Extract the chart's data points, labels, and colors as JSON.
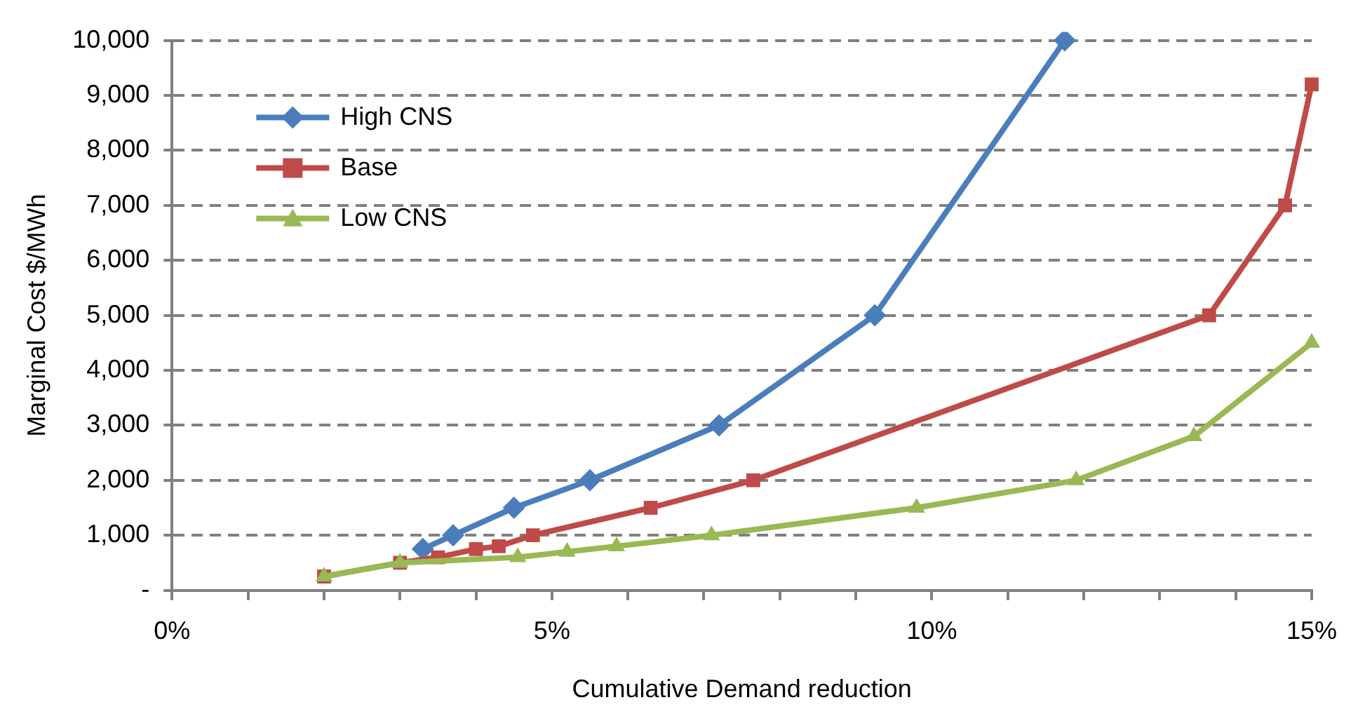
{
  "chart_data": {
    "type": "line",
    "xlabel": "Cumulative Demand reduction",
    "ylabel": "Marginal Cost $/MWh",
    "xlim": [
      0,
      15
    ],
    "xticks": [
      {
        "value": 0,
        "label": "0%"
      },
      {
        "value": 1,
        "label": null
      },
      {
        "value": 2,
        "label": null
      },
      {
        "value": 3,
        "label": null
      },
      {
        "value": 4,
        "label": null
      },
      {
        "value": 5,
        "label": "5%"
      },
      {
        "value": 6,
        "label": null
      },
      {
        "value": 7,
        "label": null
      },
      {
        "value": 8,
        "label": null
      },
      {
        "value": 9,
        "label": null
      },
      {
        "value": 10,
        "label": "10%"
      },
      {
        "value": 11,
        "label": null
      },
      {
        "value": 12,
        "label": null
      },
      {
        "value": 13,
        "label": null
      },
      {
        "value": 14,
        "label": null
      },
      {
        "value": 15,
        "label": "15%"
      }
    ],
    "ylim": [
      0,
      10000
    ],
    "yticks": [
      {
        "value": 0,
        "label": "-"
      },
      {
        "value": 1000,
        "label": "1,000"
      },
      {
        "value": 2000,
        "label": "2,000"
      },
      {
        "value": 3000,
        "label": "3,000"
      },
      {
        "value": 4000,
        "label": "4,000"
      },
      {
        "value": 5000,
        "label": "5,000"
      },
      {
        "value": 6000,
        "label": "6,000"
      },
      {
        "value": 7000,
        "label": "7,000"
      },
      {
        "value": 8000,
        "label": "8,000"
      },
      {
        "value": 9000,
        "label": "9,000"
      },
      {
        "value": 10000,
        "label": "10,000"
      }
    ],
    "grid": "y",
    "legend": "top left",
    "line_style": "solid",
    "series": [
      {
        "name": "High CNS",
        "color": "#4a7ebb",
        "marker": "diamond",
        "x": [
          3.3,
          3.7,
          4.5,
          5.5,
          7.2,
          9.25,
          11.75
        ],
        "values": [
          750,
          1000,
          1500,
          2000,
          3000,
          5000,
          10000
        ]
      },
      {
        "name": "Base",
        "color": "#be4b48",
        "marker": "square",
        "x": [
          2.0,
          3.0,
          3.5,
          4.0,
          4.3,
          4.75,
          6.3,
          7.65,
          13.65,
          14.65,
          15.0
        ],
        "values": [
          250,
          500,
          600,
          750,
          800,
          1000,
          1500,
          2000,
          5000,
          7000,
          9200
        ]
      },
      {
        "name": "Low CNS",
        "color": "#98b954",
        "marker": "triangle",
        "x": [
          2.0,
          3.0,
          4.55,
          5.2,
          5.85,
          7.1,
          9.8,
          11.9,
          13.45,
          15.0
        ],
        "values": [
          250,
          500,
          600,
          700,
          800,
          1000,
          1500,
          2000,
          2800,
          4500
        ]
      }
    ]
  }
}
